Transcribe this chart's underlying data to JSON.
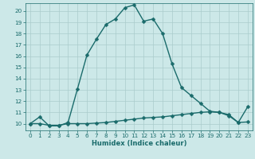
{
  "xlabel": "Humidex (Indice chaleur)",
  "background_color": "#cce8e8",
  "grid_color": "#aacccc",
  "line_color": "#1a6b6b",
  "xlim": [
    -0.5,
    23.5
  ],
  "ylim": [
    9.4,
    20.7
  ],
  "yticks": [
    10,
    11,
    12,
    13,
    14,
    15,
    16,
    17,
    18,
    19,
    20
  ],
  "xticks": [
    0,
    1,
    2,
    3,
    4,
    5,
    6,
    7,
    8,
    9,
    10,
    11,
    12,
    13,
    14,
    15,
    16,
    17,
    18,
    19,
    20,
    21,
    22,
    23
  ],
  "line1_x": [
    0,
    1,
    2,
    3,
    4,
    5,
    6,
    7,
    8,
    9,
    10,
    11,
    12,
    13,
    14,
    15,
    16,
    17,
    18,
    19,
    20,
    21,
    22,
    23
  ],
  "line1_y": [
    10.0,
    10.6,
    9.8,
    9.8,
    10.1,
    13.1,
    16.1,
    17.5,
    18.8,
    19.3,
    20.3,
    20.55,
    19.1,
    19.3,
    18.0,
    15.3,
    13.2,
    12.5,
    11.8,
    11.1,
    11.0,
    10.7,
    10.1,
    11.5
  ],
  "line2_x": [
    0,
    1,
    2,
    3,
    4,
    5,
    6,
    7,
    8,
    9,
    10,
    11,
    12,
    13,
    14,
    15,
    16,
    17,
    18,
    19,
    20,
    21,
    22,
    23
  ],
  "line2_y": [
    10.0,
    10.0,
    9.85,
    9.85,
    10.0,
    10.0,
    10.0,
    10.05,
    10.1,
    10.2,
    10.3,
    10.4,
    10.5,
    10.55,
    10.6,
    10.7,
    10.8,
    10.9,
    11.0,
    11.05,
    11.0,
    10.8,
    10.1,
    10.15
  ],
  "marker_size": 2.5,
  "line_width": 1.0,
  "xlabel_fontsize": 6.0,
  "tick_fontsize": 5.2
}
